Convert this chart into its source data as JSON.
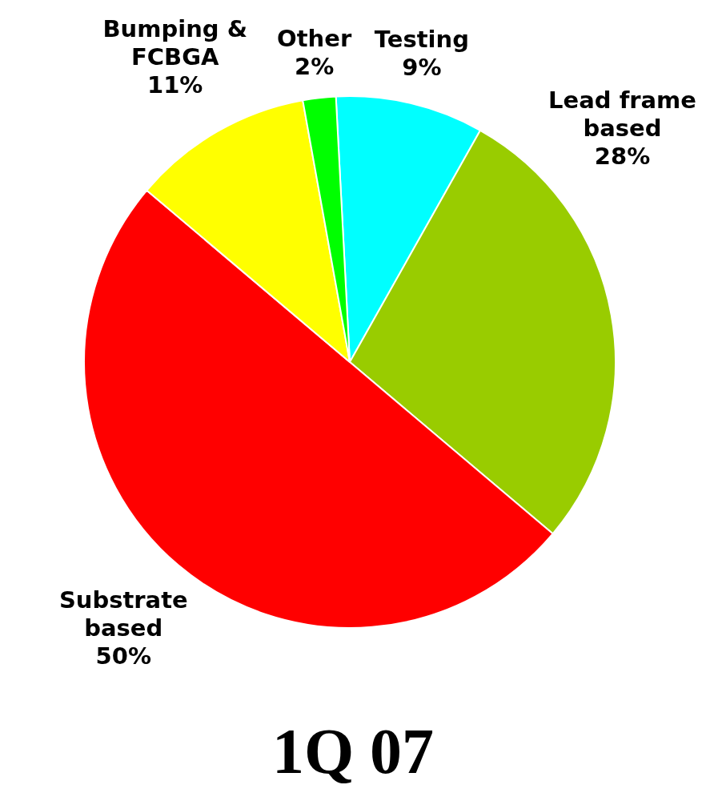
{
  "chart_data": {
    "type": "pie",
    "title": "1Q 07",
    "categories": [
      "Testing",
      "Lead frame based",
      "Substrate based",
      "Bumping & FCBGA",
      "Other"
    ],
    "values": [
      9,
      28,
      50,
      11,
      2
    ],
    "colors": [
      "#00ffff",
      "#99cc00",
      "#ff0000",
      "#ffff00",
      "#00ff00"
    ],
    "value_labels": [
      "9%",
      "28%",
      "50%",
      "11%",
      "2%"
    ],
    "legend": false
  }
}
